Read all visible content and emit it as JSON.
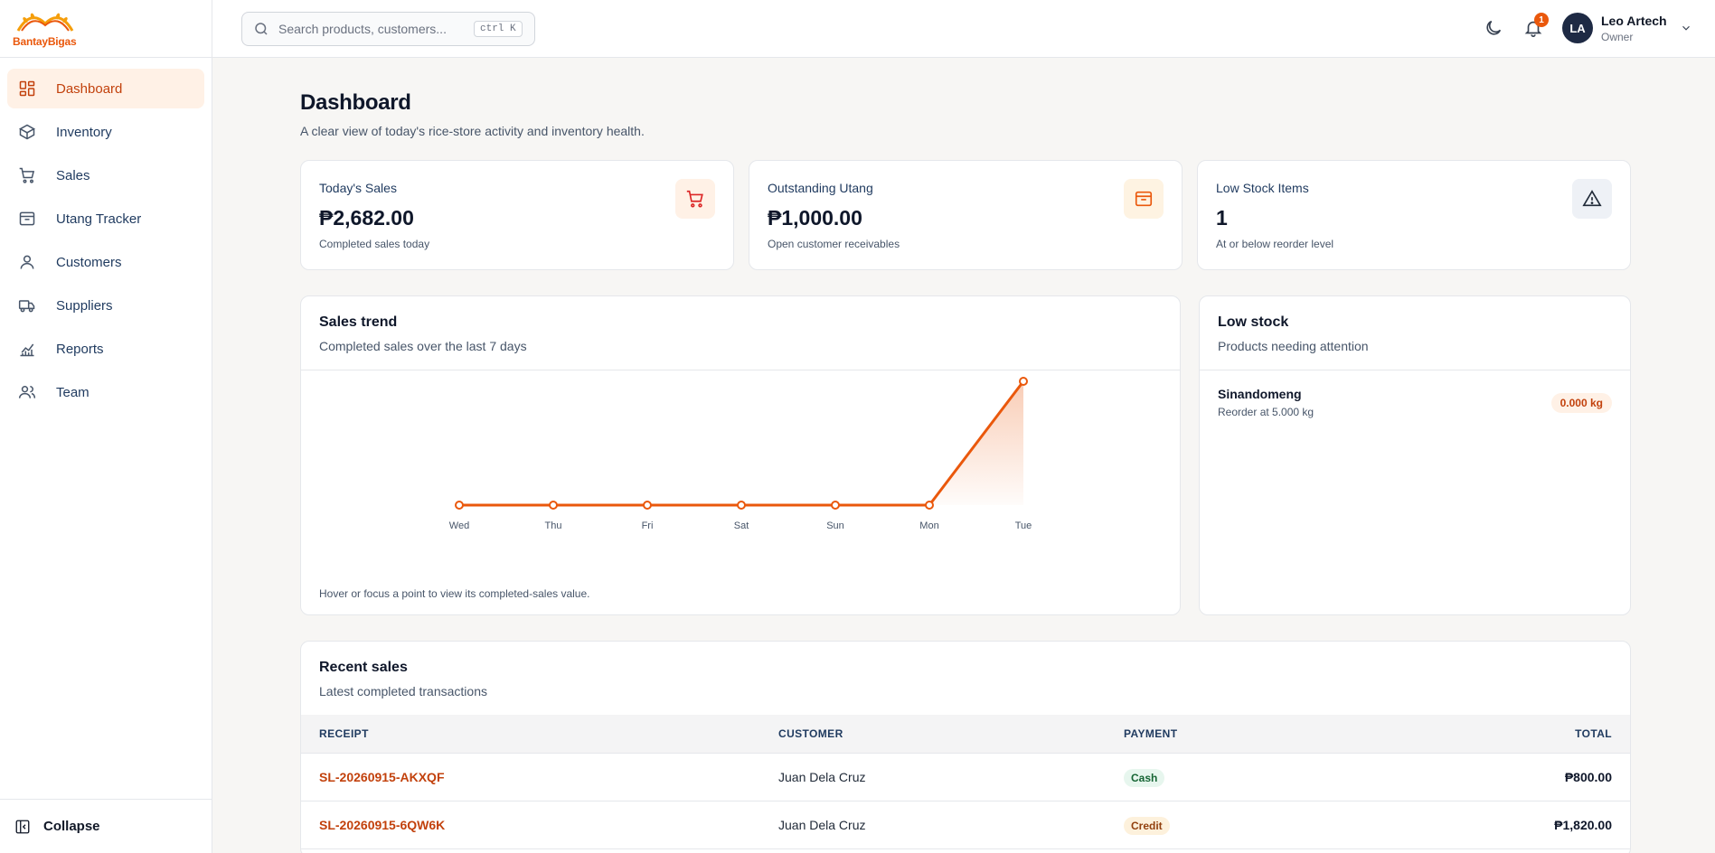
{
  "brand": {
    "name": "BantayBigas"
  },
  "sidebar": {
    "items": [
      {
        "label": "Dashboard",
        "icon": "grid-icon",
        "active": true
      },
      {
        "label": "Inventory",
        "icon": "box-icon"
      },
      {
        "label": "Sales",
        "icon": "cart-icon"
      },
      {
        "label": "Utang Tracker",
        "icon": "inbox-icon"
      },
      {
        "label": "Customers",
        "icon": "user-icon"
      },
      {
        "label": "Suppliers",
        "icon": "truck-icon"
      },
      {
        "label": "Reports",
        "icon": "chart-icon"
      },
      {
        "label": "Team",
        "icon": "users-icon"
      }
    ],
    "collapse_label": "Collapse"
  },
  "header": {
    "search_placeholder": "Search products, customers...",
    "search_shortcut": "ctrl K",
    "notification_count": "1",
    "user": {
      "initials": "LA",
      "name": "Leo Artech",
      "role": "Owner"
    }
  },
  "page": {
    "title": "Dashboard",
    "subtitle": "A clear view of today's rice-store activity and inventory health."
  },
  "stats": [
    {
      "label": "Today's Sales",
      "value": "₱2,682.00",
      "note": "Completed sales today",
      "icon": "cart-icon"
    },
    {
      "label": "Outstanding Utang",
      "value": "₱1,000.00",
      "note": "Open customer receivables",
      "icon": "inbox-icon"
    },
    {
      "label": "Low Stock Items",
      "value": "1",
      "note": "At or below reorder level",
      "icon": "alert-triangle-icon"
    }
  ],
  "sales_trend": {
    "title": "Sales trend",
    "subtitle": "Completed sales over the last 7 days",
    "note": "Hover or focus a point to view its completed-sales value."
  },
  "chart_data": {
    "type": "line",
    "categories": [
      "Wed",
      "Thu",
      "Fri",
      "Sat",
      "Sun",
      "Mon",
      "Tue"
    ],
    "values": [
      0,
      0,
      0,
      0,
      0,
      0,
      2682
    ],
    "ylim": [
      0,
      2682
    ],
    "grid": false,
    "color": "#ea580c"
  },
  "low_stock": {
    "title": "Low stock",
    "subtitle": "Products needing attention",
    "items": [
      {
        "name": "Sinandomeng",
        "reorder": "Reorder at 5.000 kg",
        "qty": "0.000 kg"
      }
    ]
  },
  "recent_sales": {
    "title": "Recent sales",
    "subtitle": "Latest completed transactions",
    "columns": [
      "RECEIPT",
      "CUSTOMER",
      "PAYMENT",
      "TOTAL"
    ],
    "rows": [
      {
        "receipt": "SL-20260915-AKXQF",
        "customer": "Juan Dela Cruz",
        "payment": "Cash",
        "total": "₱800.00"
      },
      {
        "receipt": "SL-20260915-6QW6K",
        "customer": "Juan Dela Cruz",
        "payment": "Credit",
        "total": "₱1,820.00"
      }
    ]
  }
}
